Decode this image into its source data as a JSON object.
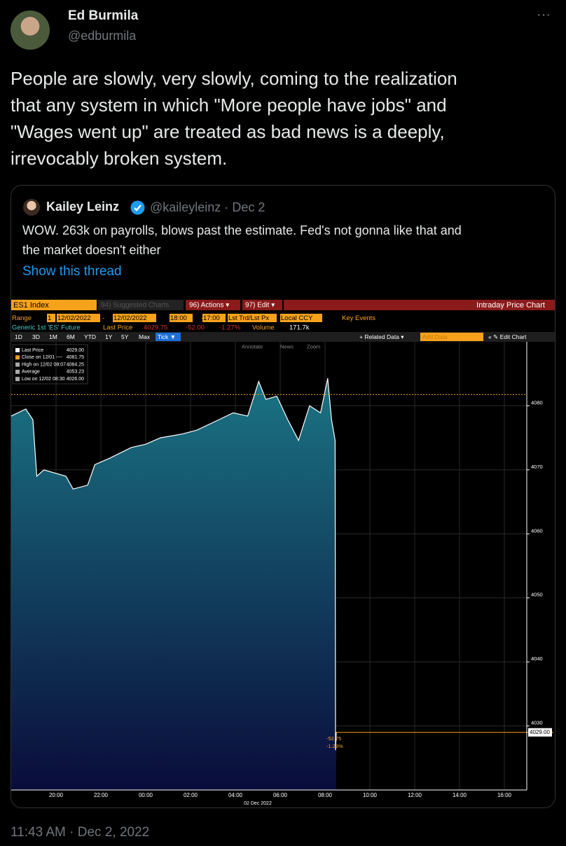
{
  "tweet": {
    "author": {
      "name": "Ed Burmila",
      "handle": "@edburmila"
    },
    "more": "···",
    "text_lines": [
      "People are slowly, very slowly, coming to the realization",
      "that any system in which \"More people have jobs\" and",
      "\"Wages went up\" are treated as bad news is a deeply,",
      "irrevocably broken system."
    ],
    "quoted": {
      "author": {
        "name": "Kailey Leinz",
        "handle": "@kaileyleinz",
        "date": "· Dec 2"
      },
      "text_lines": [
        "WOW. 263k on payrolls, blows past the estimate. Fed's not gonna like that and",
        "the market doesn't either"
      ],
      "show_thread": "Show this thread",
      "terminal": {
        "ticker": "ES1 Index",
        "suggested": "94) Suggested Charts",
        "actions": "96) Actions ▾",
        "edit": "97) Edit ▾",
        "view": "Intraday Price Chart",
        "range_row": [
          "Range",
          "1",
          "12/02/2022",
          "-",
          "12/02/2022",
          "18:00",
          "-",
          "17:00",
          "Lst Trd/Lst Px",
          "Local CCY",
          "Key Events"
        ],
        "quote_row": [
          "Generic 1st 'ES' Future",
          "Last Price",
          "4029.75",
          "-52.00",
          "-1.27%",
          "Volume",
          "171.7k"
        ],
        "buttons": [
          "1D",
          "3D",
          "1M",
          "6M",
          "YTD",
          "1Y",
          "5Y",
          "Max",
          "Tick ▼"
        ],
        "related": "+ Related Data ▾",
        "add_data": "Add Data",
        "edit_chart": "« ✎ Edit Chart",
        "tools": [
          "Annotate",
          "News",
          "Zoom"
        ],
        "price_tag": "4029.00",
        "change_tags": [
          "-52.75",
          "-1.29%"
        ]
      },
      "chart_data": {
        "type": "area",
        "legend": [
          {
            "label": "Last Price",
            "value": 4029,
            "value_label": "4029.00"
          },
          {
            "label": "Close on 12/01 ----",
            "value": 4081.75,
            "value_label": "4081.75"
          },
          {
            "label": "High on 12/02 08:07",
            "value": 4084.25,
            "value_label": "4084.25"
          },
          {
            "label": "Average",
            "value": 4053.23,
            "value_label": "4053.23"
          },
          {
            "label": "Low on 12/02 08:30",
            "value": 4026,
            "value_label": "4026.00"
          }
        ],
        "x": [
          18,
          18.65,
          18.97,
          19.14,
          19.46,
          20.44,
          20.76,
          21.41,
          21.73,
          22.38,
          23.36,
          24.0,
          24.66,
          25.63,
          26.28,
          27.25,
          27.9,
          28.55,
          29.04,
          29.36,
          29.85,
          30.34,
          30.82,
          31.31,
          31.8,
          32.12,
          32.29,
          32.45,
          32.47,
          32.5
        ],
        "series": [
          {
            "name": "Last Price",
            "color": "#ffffff",
            "values": [
              4078.4,
              4079.5,
              4077.8,
              4069,
              4070,
              4069,
              4067,
              4067.6,
              4070.8,
              4071.8,
              4073.5,
              4074,
              4075,
              4075.6,
              4076.2,
              4077.8,
              4078.9,
              4078.4,
              4083.8,
              4081,
              4081.5,
              4077.8,
              4074.6,
              4080,
              4078.9,
              4084.3,
              4077.8,
              4074.6,
              4026.2,
              4029
            ]
          }
        ],
        "xlim": [
          18,
          41
        ],
        "xticks": [
          {
            "value": 20,
            "label": "20:00"
          },
          {
            "value": 22,
            "label": "22:00"
          },
          {
            "value": 24,
            "label": "00:00"
          },
          {
            "value": 26,
            "label": "02:00"
          },
          {
            "value": 28,
            "label": "04:00"
          },
          {
            "value": 30,
            "label": "06:00"
          },
          {
            "value": 32,
            "label": "08:00"
          },
          {
            "value": 34,
            "label": "10:00"
          },
          {
            "value": 36,
            "label": "12:00"
          },
          {
            "value": 38,
            "label": "14:00"
          },
          {
            "value": 40,
            "label": "16:00"
          }
        ],
        "xlabel": "02 Dec 2022",
        "ylim": [
          4020,
          4090
        ],
        "yticks": [
          4030,
          4040,
          4050,
          4060,
          4070,
          4080
        ],
        "grid": true
      }
    },
    "timestamp": "11:43 AM · Dec 2, 2022"
  }
}
